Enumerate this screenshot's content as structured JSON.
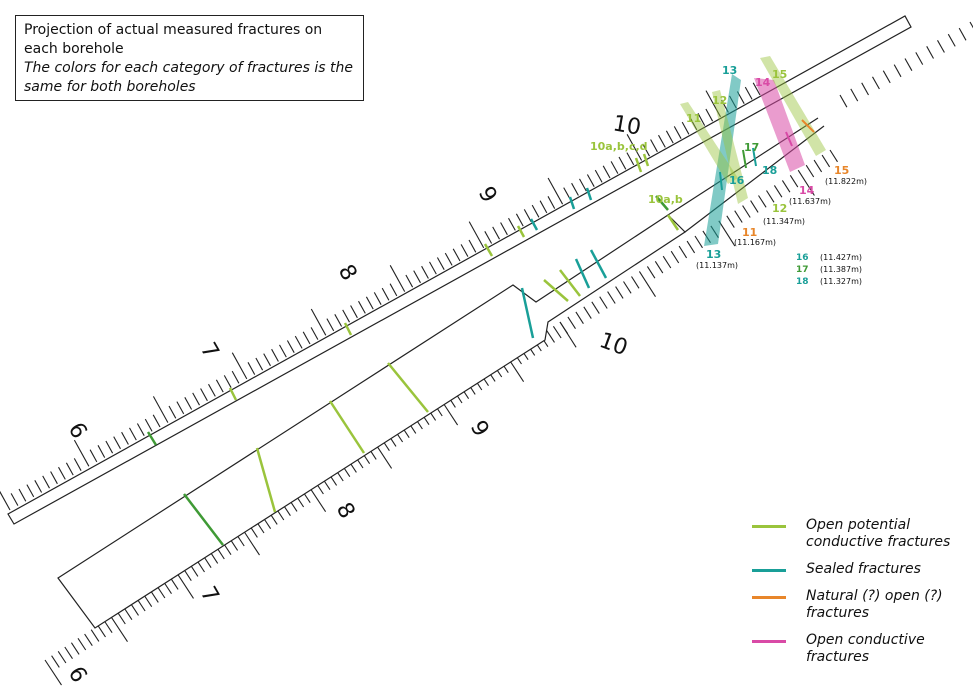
{
  "caption": {
    "title": "Projection of actual measured fractures on each borehole",
    "note": "The colors for each category of fractures is the same for both boreholes"
  },
  "colors": {
    "open_potential": "#9ac43c",
    "open_potential_dark": "#3f9a35",
    "sealed": "#199f98",
    "natural_open": "#e8862a",
    "open_conductive": "#d94aa6",
    "tube_outline": "#222222"
  },
  "upper_borehole": {
    "depth_labels": [
      "6",
      "7",
      "8",
      "9",
      "10"
    ]
  },
  "lower_borehole": {
    "depth_labels": [
      "6",
      "7",
      "8",
      "9",
      "10"
    ]
  },
  "fracture_labels": [
    {
      "id": "10a,b,c,d",
      "category": "open_potential"
    },
    {
      "id": "10a,b",
      "category": "open_potential"
    },
    {
      "id": "11",
      "category": "open_potential"
    },
    {
      "id": "12",
      "category": "open_potential"
    },
    {
      "id": "13",
      "category": "sealed"
    },
    {
      "id": "14",
      "category": "open_conductive"
    },
    {
      "id": "15",
      "category": "open_potential"
    },
    {
      "id": "16",
      "category": "sealed"
    },
    {
      "id": "17",
      "category": "open_potential_dark"
    },
    {
      "id": "18",
      "category": "sealed"
    }
  ],
  "depth_readings": [
    {
      "id": "11",
      "depth": "(11.167m)",
      "category": "natural_open"
    },
    {
      "id": "12",
      "depth": "(11.347m)",
      "category": "open_potential"
    },
    {
      "id": "13",
      "depth": "(11.137m)",
      "category": "sealed"
    },
    {
      "id": "14",
      "depth": "(11.637m)",
      "category": "open_conductive"
    },
    {
      "id": "15",
      "depth": "(11.822m)",
      "category": "natural_open"
    }
  ],
  "depth_table": [
    {
      "id": "16",
      "depth": "(11.427m)"
    },
    {
      "id": "17",
      "depth": "(11.387m)"
    },
    {
      "id": "18",
      "depth": "(11.327m)"
    }
  ],
  "legend": [
    {
      "label": "Open potential conductive fractures",
      "color": "#9ac43c"
    },
    {
      "label": "Sealed fractures",
      "color": "#199f98"
    },
    {
      "label": "Natural (?) open (?) fractures",
      "color": "#e8862a"
    },
    {
      "label": "Open conductive fractures",
      "color": "#d94aa6"
    }
  ]
}
